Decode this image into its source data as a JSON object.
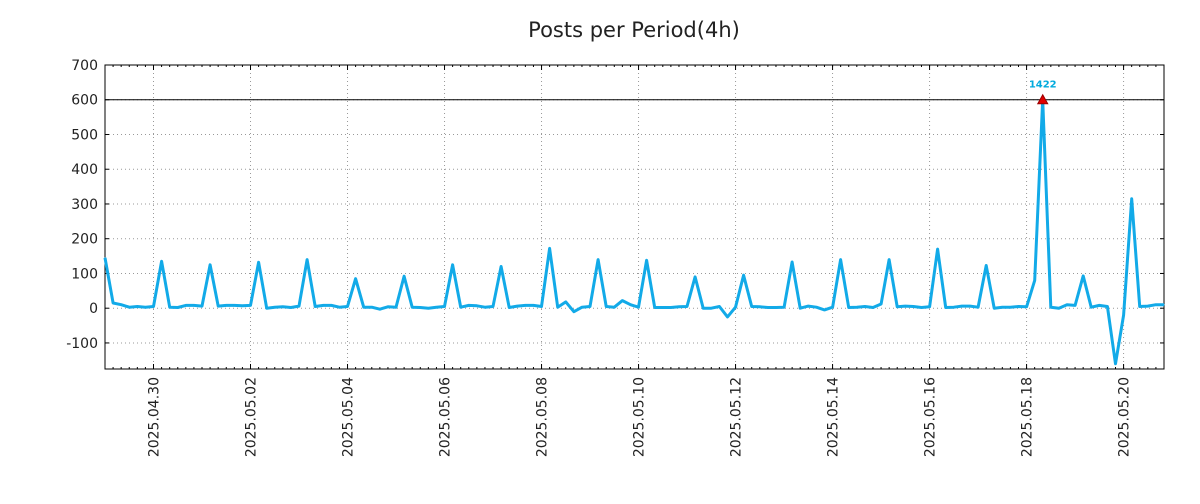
{
  "chart_data": {
    "type": "line",
    "title": "Posts per Period(4h)",
    "xlabel": "",
    "ylabel": "",
    "ylim": [
      -175,
      700
    ],
    "y_ticks": [
      700,
      600,
      500,
      400,
      300,
      200,
      100,
      0,
      -100
    ],
    "y_tick_labels": [
      "700",
      "600",
      "500",
      "400",
      "300",
      "200",
      "100",
      "0",
      "-100"
    ],
    "x_range": [
      "2025-04-29T00:00",
      "2025-05-20T20:00"
    ],
    "x_ticks": [
      "2025-04-30",
      "2025-05-02",
      "2025-05-04",
      "2025-05-06",
      "2025-05-08",
      "2025-05-10",
      "2025-05-12",
      "2025-05-14",
      "2025-05-16",
      "2025-05-18",
      "2025-05-20"
    ],
    "x_tick_labels": [
      "2025.04.30",
      "2025.05.02",
      "2025.05.04",
      "2025.05.06",
      "2025.05.08",
      "2025.05.10",
      "2025.05.12",
      "2025.05.14",
      "2025.05.16",
      "2025.05.18",
      "2025.05.20"
    ],
    "grid": true,
    "reference_line": 600,
    "line_color": "#12aae8",
    "marker_color": "#e00000",
    "peak": {
      "x": "2025-05-18T08:00",
      "y": 600,
      "label": "1422"
    },
    "series": [
      {
        "values": [
          [
            "2025-04-29T00:00",
            145
          ],
          [
            "2025-04-29T04:00",
            15
          ],
          [
            "2025-04-29T08:00",
            10
          ],
          [
            "2025-04-29T12:00",
            3
          ],
          [
            "2025-04-29T16:00",
            5
          ],
          [
            "2025-04-29T20:00",
            3
          ],
          [
            "2025-04-30T00:00",
            5
          ],
          [
            "2025-04-30T04:00",
            135
          ],
          [
            "2025-04-30T08:00",
            3
          ],
          [
            "2025-04-30T12:00",
            2
          ],
          [
            "2025-04-30T16:00",
            8
          ],
          [
            "2025-04-30T20:00",
            8
          ],
          [
            "2025-05-01T00:00",
            6
          ],
          [
            "2025-05-01T04:00",
            125
          ],
          [
            "2025-05-01T08:00",
            6
          ],
          [
            "2025-05-01T12:00",
            8
          ],
          [
            "2025-05-01T16:00",
            8
          ],
          [
            "2025-05-01T20:00",
            7
          ],
          [
            "2025-05-02T00:00",
            8
          ],
          [
            "2025-05-02T04:00",
            132
          ],
          [
            "2025-05-02T08:00",
            0
          ],
          [
            "2025-05-02T12:00",
            3
          ],
          [
            "2025-05-02T16:00",
            4
          ],
          [
            "2025-05-02T20:00",
            2
          ],
          [
            "2025-05-03T00:00",
            6
          ],
          [
            "2025-05-03T04:00",
            140
          ],
          [
            "2025-05-03T08:00",
            5
          ],
          [
            "2025-05-03T12:00",
            8
          ],
          [
            "2025-05-03T16:00",
            8
          ],
          [
            "2025-05-03T20:00",
            3
          ],
          [
            "2025-05-04T00:00",
            5
          ],
          [
            "2025-05-04T04:00",
            85
          ],
          [
            "2025-05-04T08:00",
            3
          ],
          [
            "2025-05-04T12:00",
            3
          ],
          [
            "2025-05-04T16:00",
            -3
          ],
          [
            "2025-05-04T20:00",
            4
          ],
          [
            "2025-05-05T00:00",
            3
          ],
          [
            "2025-05-05T04:00",
            92
          ],
          [
            "2025-05-05T08:00",
            3
          ],
          [
            "2025-05-05T12:00",
            2
          ],
          [
            "2025-05-05T16:00",
            0
          ],
          [
            "2025-05-05T20:00",
            3
          ],
          [
            "2025-05-06T00:00",
            5
          ],
          [
            "2025-05-06T04:00",
            125
          ],
          [
            "2025-05-06T08:00",
            3
          ],
          [
            "2025-05-06T12:00",
            8
          ],
          [
            "2025-05-06T16:00",
            7
          ],
          [
            "2025-05-06T20:00",
            3
          ],
          [
            "2025-05-07T00:00",
            5
          ],
          [
            "2025-05-07T04:00",
            120
          ],
          [
            "2025-05-07T08:00",
            2
          ],
          [
            "2025-05-07T12:00",
            6
          ],
          [
            "2025-05-07T16:00",
            8
          ],
          [
            "2025-05-07T20:00",
            8
          ],
          [
            "2025-05-08T00:00",
            5
          ],
          [
            "2025-05-08T04:00",
            172
          ],
          [
            "2025-05-08T08:00",
            3
          ],
          [
            "2025-05-08T12:00",
            18
          ],
          [
            "2025-05-08T16:00",
            -10
          ],
          [
            "2025-05-08T20:00",
            3
          ],
          [
            "2025-05-09T00:00",
            5
          ],
          [
            "2025-05-09T04:00",
            140
          ],
          [
            "2025-05-09T08:00",
            5
          ],
          [
            "2025-05-09T12:00",
            3
          ],
          [
            "2025-05-09T16:00",
            22
          ],
          [
            "2025-05-09T20:00",
            10
          ],
          [
            "2025-05-10T00:00",
            3
          ],
          [
            "2025-05-10T04:00",
            138
          ],
          [
            "2025-05-10T08:00",
            2
          ],
          [
            "2025-05-10T12:00",
            2
          ],
          [
            "2025-05-10T16:00",
            2
          ],
          [
            "2025-05-10T20:00",
            4
          ],
          [
            "2025-05-11T00:00",
            5
          ],
          [
            "2025-05-11T04:00",
            90
          ],
          [
            "2025-05-11T08:00",
            0
          ],
          [
            "2025-05-11T12:00",
            0
          ],
          [
            "2025-05-11T16:00",
            5
          ],
          [
            "2025-05-11T20:00",
            -25
          ],
          [
            "2025-05-12T00:00",
            3
          ],
          [
            "2025-05-12T04:00",
            95
          ],
          [
            "2025-05-12T08:00",
            5
          ],
          [
            "2025-05-12T12:00",
            4
          ],
          [
            "2025-05-12T16:00",
            2
          ],
          [
            "2025-05-12T20:00",
            2
          ],
          [
            "2025-05-13T00:00",
            3
          ],
          [
            "2025-05-13T04:00",
            133
          ],
          [
            "2025-05-13T08:00",
            0
          ],
          [
            "2025-05-13T12:00",
            6
          ],
          [
            "2025-05-13T16:00",
            3
          ],
          [
            "2025-05-13T20:00",
            -5
          ],
          [
            "2025-05-14T00:00",
            3
          ],
          [
            "2025-05-14T04:00",
            140
          ],
          [
            "2025-05-14T08:00",
            2
          ],
          [
            "2025-05-14T12:00",
            3
          ],
          [
            "2025-05-14T16:00",
            5
          ],
          [
            "2025-05-14T20:00",
            2
          ],
          [
            "2025-05-15T00:00",
            12
          ],
          [
            "2025-05-15T04:00",
            140
          ],
          [
            "2025-05-15T08:00",
            4
          ],
          [
            "2025-05-15T12:00",
            6
          ],
          [
            "2025-05-15T16:00",
            5
          ],
          [
            "2025-05-15T20:00",
            2
          ],
          [
            "2025-05-16T00:00",
            4
          ],
          [
            "2025-05-16T04:00",
            170
          ],
          [
            "2025-05-16T08:00",
            2
          ],
          [
            "2025-05-16T12:00",
            3
          ],
          [
            "2025-05-16T16:00",
            6
          ],
          [
            "2025-05-16T20:00",
            6
          ],
          [
            "2025-05-17T00:00",
            3
          ],
          [
            "2025-05-17T04:00",
            123
          ],
          [
            "2025-05-17T08:00",
            0
          ],
          [
            "2025-05-17T12:00",
            3
          ],
          [
            "2025-05-17T16:00",
            3
          ],
          [
            "2025-05-17T20:00",
            5
          ],
          [
            "2025-05-18T00:00",
            4
          ],
          [
            "2025-05-18T04:00",
            80
          ],
          [
            "2025-05-18T08:00",
            600
          ],
          [
            "2025-05-18T12:00",
            3
          ],
          [
            "2025-05-18T16:00",
            0
          ],
          [
            "2025-05-18T20:00",
            10
          ],
          [
            "2025-05-19T00:00",
            8
          ],
          [
            "2025-05-19T04:00",
            93
          ],
          [
            "2025-05-19T08:00",
            3
          ],
          [
            "2025-05-19T12:00",
            8
          ],
          [
            "2025-05-19T16:00",
            5
          ],
          [
            "2025-05-19T20:00",
            -160
          ],
          [
            "2025-05-20T00:00",
            -20
          ],
          [
            "2025-05-20T04:00",
            315
          ],
          [
            "2025-05-20T08:00",
            5
          ],
          [
            "2025-05-20T12:00",
            6
          ],
          [
            "2025-05-20T16:00",
            10
          ],
          [
            "2025-05-20T20:00",
            10
          ]
        ]
      }
    ]
  }
}
